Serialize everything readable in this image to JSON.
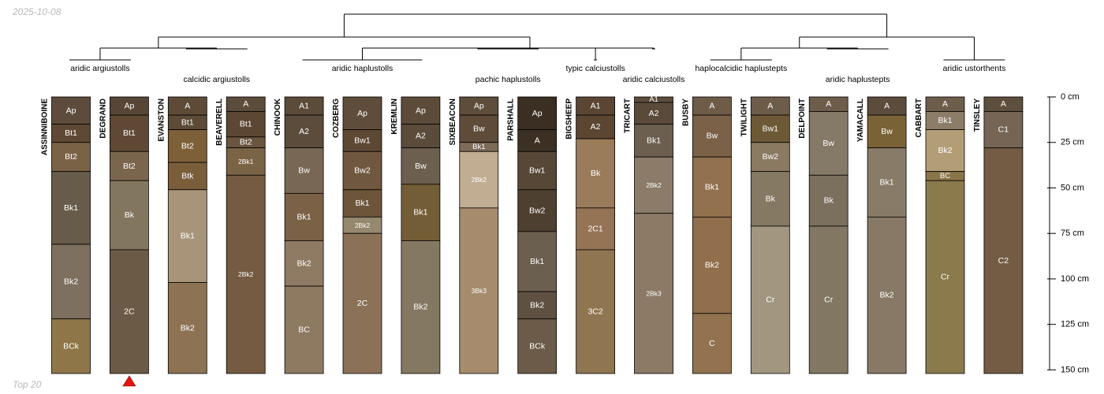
{
  "header": {
    "date": "2025-10-08"
  },
  "footer": {
    "note": "Top 20"
  },
  "chart_data": {
    "type": "soil-profile",
    "depth_axis": {
      "unit": "cm",
      "range": [
        0,
        150
      ],
      "ticks": [
        {
          "value": 0,
          "label": "0 cm"
        },
        {
          "value": 25,
          "label": "25 cm"
        },
        {
          "value": 50,
          "label": "50 cm"
        },
        {
          "value": 75,
          "label": "75 cm"
        },
        {
          "value": 100,
          "label": "100 cm"
        },
        {
          "value": 125,
          "label": "125 cm"
        },
        {
          "value": 150,
          "label": "150 cm"
        }
      ]
    },
    "marked_profile": "DEGRAND",
    "profiles": [
      {
        "name": "ASSINNIBOINE",
        "horizons": [
          {
            "name": "Ap",
            "top": 0,
            "bottom": 15,
            "color": "#5d4c3b"
          },
          {
            "name": "Bt1",
            "top": 15,
            "bottom": 25,
            "color": "#5f4934"
          },
          {
            "name": "Bt2",
            "top": 25,
            "bottom": 41,
            "color": "#7a6246"
          },
          {
            "name": "Bk1",
            "top": 41,
            "bottom": 81,
            "color": "#675b4a"
          },
          {
            "name": "Bk2",
            "top": 81,
            "bottom": 122,
            "color": "#7e705e"
          },
          {
            "name": "BCk",
            "top": 122,
            "bottom": 152,
            "color": "#8e7649"
          }
        ]
      },
      {
        "name": "DEGRAND",
        "horizons": [
          {
            "name": "Ap",
            "top": 0,
            "bottom": 10,
            "color": "#574636"
          },
          {
            "name": "Bt1",
            "top": 10,
            "bottom": 30,
            "color": "#5f4934"
          },
          {
            "name": "Bt2",
            "top": 30,
            "bottom": 46,
            "color": "#7b664d"
          },
          {
            "name": "Bk",
            "top": 46,
            "bottom": 84,
            "color": "#83765f"
          },
          {
            "name": "2C",
            "top": 84,
            "bottom": 152,
            "color": "#6b5b46"
          }
        ]
      },
      {
        "name": "EVANSTON",
        "horizons": [
          {
            "name": "A",
            "top": 0,
            "bottom": 10,
            "color": "#5d4b38"
          },
          {
            "name": "Bt1",
            "top": 10,
            "bottom": 18,
            "color": "#5d4a37"
          },
          {
            "name": "Bt2",
            "top": 18,
            "bottom": 36,
            "color": "#7d6038"
          },
          {
            "name": "Btk",
            "top": 36,
            "bottom": 51,
            "color": "#7a5e3a"
          },
          {
            "name": "Bk1",
            "top": 51,
            "bottom": 102,
            "color": "#a79479"
          },
          {
            "name": "Bk2",
            "top": 102,
            "bottom": 152,
            "color": "#8d7354"
          }
        ]
      },
      {
        "name": "BEAVERELL",
        "horizons": [
          {
            "name": "A",
            "top": 0,
            "bottom": 8,
            "color": "#5c4c3b"
          },
          {
            "name": "Bt1",
            "top": 8,
            "bottom": 22,
            "color": "#5c4734"
          },
          {
            "name": "Bt2",
            "top": 22,
            "bottom": 28,
            "color": "#6a5540"
          },
          {
            "name": "2Bk1",
            "top": 28,
            "bottom": 43,
            "color": "#7b6445"
          },
          {
            "name": "2Bk2",
            "top": 43,
            "bottom": 152,
            "color": "#745b41"
          }
        ]
      },
      {
        "name": "CHINOOK",
        "horizons": [
          {
            "name": "A1",
            "top": 0,
            "bottom": 10,
            "color": "#5b4b39"
          },
          {
            "name": "A2",
            "top": 10,
            "bottom": 28,
            "color": "#5c4c3c"
          },
          {
            "name": "Bw",
            "top": 28,
            "bottom": 53,
            "color": "#776754"
          },
          {
            "name": "Bk1",
            "top": 53,
            "bottom": 79,
            "color": "#7b6246"
          },
          {
            "name": "Bk2",
            "top": 79,
            "bottom": 104,
            "color": "#8f7b63"
          },
          {
            "name": "BC",
            "top": 104,
            "bottom": 152,
            "color": "#8e7a61"
          }
        ]
      },
      {
        "name": "COZBERG",
        "horizons": [
          {
            "name": "Ap",
            "top": 0,
            "bottom": 18,
            "color": "#5f4d3b"
          },
          {
            "name": "Bw1",
            "top": 18,
            "bottom": 30,
            "color": "#5d4834"
          },
          {
            "name": "Bw2",
            "top": 30,
            "bottom": 51,
            "color": "#705840"
          },
          {
            "name": "Bk1",
            "top": 51,
            "bottom": 66,
            "color": "#6c5539"
          },
          {
            "name": "2Bk2",
            "top": 66,
            "bottom": 75,
            "color": "#95886f"
          },
          {
            "name": "2C",
            "top": 75,
            "bottom": 152,
            "color": "#8b7257"
          }
        ]
      },
      {
        "name": "KREMLIN",
        "horizons": [
          {
            "name": "Ap",
            "top": 0,
            "bottom": 15,
            "color": "#5d4b3a"
          },
          {
            "name": "A2",
            "top": 15,
            "bottom": 28,
            "color": "#5b4b3b"
          },
          {
            "name": "Bw",
            "top": 28,
            "bottom": 48,
            "color": "#6d5f4f"
          },
          {
            "name": "Bk1",
            "top": 48,
            "bottom": 79,
            "color": "#735d36"
          },
          {
            "name": "Bk2",
            "top": 79,
            "bottom": 152,
            "color": "#857862"
          }
        ]
      },
      {
        "name": "SIXBEACON",
        "horizons": [
          {
            "name": "Ap",
            "top": 0,
            "bottom": 10,
            "color": "#5e4d3b"
          },
          {
            "name": "Bw",
            "top": 10,
            "bottom": 25,
            "color": "#5e4c39"
          },
          {
            "name": "Bk1",
            "top": 25,
            "bottom": 30,
            "color": "#7d6b57"
          },
          {
            "name": "2Bk2",
            "top": 30,
            "bottom": 61,
            "color": "#c0ad92"
          },
          {
            "name": "3Bk3",
            "top": 61,
            "bottom": 152,
            "color": "#a68b6c"
          }
        ]
      },
      {
        "name": "PARSHALL",
        "horizons": [
          {
            "name": "Ap",
            "top": 0,
            "bottom": 18,
            "color": "#3b2f23"
          },
          {
            "name": "A",
            "top": 18,
            "bottom": 30,
            "color": "#3c3024"
          },
          {
            "name": "Bw1",
            "top": 30,
            "bottom": 51,
            "color": "#564737"
          },
          {
            "name": "Bw2",
            "top": 51,
            "bottom": 74,
            "color": "#4e4030"
          },
          {
            "name": "Bk1",
            "top": 74,
            "bottom": 107,
            "color": "#6b5f50"
          },
          {
            "name": "Bk2",
            "top": 107,
            "bottom": 122,
            "color": "#5f5141"
          },
          {
            "name": "BCk",
            "top": 122,
            "bottom": 152,
            "color": "#6b5b48"
          }
        ]
      },
      {
        "name": "BIGSHEEP",
        "horizons": [
          {
            "name": "A1",
            "top": 0,
            "bottom": 10,
            "color": "#5b4634"
          },
          {
            "name": "A2",
            "top": 10,
            "bottom": 23,
            "color": "#5c4632"
          },
          {
            "name": "Bk",
            "top": 23,
            "bottom": 61,
            "color": "#9a7c5b"
          },
          {
            "name": "2C1",
            "top": 61,
            "bottom": 84,
            "color": "#957455"
          },
          {
            "name": "3C2",
            "top": 84,
            "bottom": 152,
            "color": "#8f7651"
          }
        ]
      },
      {
        "name": "TRICART",
        "horizons": [
          {
            "name": "A1",
            "top": 0,
            "bottom": 3,
            "color": "#5d4c3b"
          },
          {
            "name": "A2",
            "top": 3,
            "bottom": 15,
            "color": "#5a4a3a"
          },
          {
            "name": "Bk1",
            "top": 15,
            "bottom": 33,
            "color": "#6c5f4f"
          },
          {
            "name": "2Bk2",
            "top": 33,
            "bottom": 64,
            "color": "#8b7b68"
          },
          {
            "name": "2Bk3",
            "top": 64,
            "bottom": 152,
            "color": "#8c7a67"
          }
        ]
      },
      {
        "name": "BUSBY",
        "horizons": [
          {
            "name": "A",
            "top": 0,
            "bottom": 10,
            "color": "#6e5c49"
          },
          {
            "name": "Bw",
            "top": 10,
            "bottom": 33,
            "color": "#7a6148"
          },
          {
            "name": "Bk1",
            "top": 33,
            "bottom": 66,
            "color": "#91714e"
          },
          {
            "name": "Bk2",
            "top": 66,
            "bottom": 119,
            "color": "#916f4d"
          },
          {
            "name": "C",
            "top": 119,
            "bottom": 152,
            "color": "#93734f"
          }
        ]
      },
      {
        "name": "TWILIGHT",
        "horizons": [
          {
            "name": "A",
            "top": 0,
            "bottom": 10,
            "color": "#6d5c4a"
          },
          {
            "name": "Bw1",
            "top": 10,
            "bottom": 25,
            "color": "#6e5937"
          },
          {
            "name": "Bw2",
            "top": 25,
            "bottom": 41,
            "color": "#8a7a62"
          },
          {
            "name": "Bk",
            "top": 41,
            "bottom": 71,
            "color": "#857963"
          },
          {
            "name": "Cr",
            "top": 71,
            "bottom": 152,
            "color": "#a29680"
          }
        ]
      },
      {
        "name": "DELPOINT",
        "horizons": [
          {
            "name": "A",
            "top": 0,
            "bottom": 8,
            "color": "#6e5d4b"
          },
          {
            "name": "Bw",
            "top": 8,
            "bottom": 43,
            "color": "#857a68"
          },
          {
            "name": "Bk",
            "top": 43,
            "bottom": 71,
            "color": "#7b6f5d"
          },
          {
            "name": "Cr",
            "top": 71,
            "bottom": 152,
            "color": "#817763"
          }
        ]
      },
      {
        "name": "YAMACALL",
        "horizons": [
          {
            "name": "A",
            "top": 0,
            "bottom": 10,
            "color": "#5c4c3b"
          },
          {
            "name": "Bw",
            "top": 10,
            "bottom": 28,
            "color": "#7a6237"
          },
          {
            "name": "Bk1",
            "top": 28,
            "bottom": 66,
            "color": "#887b68"
          },
          {
            "name": "Bk2",
            "top": 66,
            "bottom": 152,
            "color": "#877966"
          }
        ]
      },
      {
        "name": "CABBART",
        "horizons": [
          {
            "name": "A",
            "top": 0,
            "bottom": 8,
            "color": "#6d5e4b"
          },
          {
            "name": "Bk1",
            "top": 8,
            "bottom": 18,
            "color": "#8c7d68"
          },
          {
            "name": "Bk2",
            "top": 18,
            "bottom": 41,
            "color": "#b39d77"
          },
          {
            "name": "BC",
            "top": 41,
            "bottom": 46,
            "color": "#8c7449"
          },
          {
            "name": "Cr",
            "top": 46,
            "bottom": 152,
            "color": "#8a7a4c"
          }
        ]
      },
      {
        "name": "TINSLEY",
        "horizons": [
          {
            "name": "A",
            "top": 0,
            "bottom": 8,
            "color": "#5e4e3d"
          },
          {
            "name": "C1",
            "top": 8,
            "bottom": 28,
            "color": "#766554"
          },
          {
            "name": "C2",
            "top": 28,
            "bottom": 152,
            "color": "#735c43"
          }
        ]
      }
    ],
    "groups": [
      {
        "label": "aridic argiustolls",
        "profiles": [
          "ASSINNIBOINE",
          "DEGRAND"
        ]
      },
      {
        "label": "calcidic argiustolls",
        "profiles": [
          "EVANSTON",
          "BEAVERELL"
        ]
      },
      {
        "label": "aridic haplustolls",
        "profiles": [
          "CHINOOK",
          "COZBERG",
          "KREMLIN"
        ]
      },
      {
        "label": "pachic haplustolls",
        "profiles": [
          "SIXBEACON",
          "PARSHALL"
        ]
      },
      {
        "label": "typic calciustolls",
        "profiles": [
          "BIGSHEEP"
        ]
      },
      {
        "label": "aridic calciustolls",
        "profiles": [
          "TRICART"
        ]
      },
      {
        "label": "haplocalcidic haplustepts",
        "profiles": [
          "BUSBY",
          "TWILIGHT"
        ]
      },
      {
        "label": "aridic haplustepts",
        "profiles": [
          "DELPOINT",
          "YAMACALL"
        ]
      },
      {
        "label": "aridic ustorthents",
        "profiles": [
          "CABBART",
          "TINSLEY"
        ]
      }
    ],
    "dendrogram": {
      "children": [
        {
          "children": [
            {
              "children": [
                {
                  "group": "aridic argiustolls"
                },
                {
                  "group": "calcidic argiustolls"
                }
              ]
            },
            {
              "children": [
                {
                  "children": [
                    {
                      "group": "aridic haplustolls"
                    },
                    {
                      "group": "pachic haplustolls"
                    }
                  ]
                },
                {
                  "children": [
                    {
                      "group": "typic calciustolls"
                    },
                    {
                      "group": "aridic calciustolls"
                    }
                  ]
                }
              ]
            }
          ]
        },
        {
          "children": [
            {
              "children": [
                {
                  "group": "haplocalcidic haplustepts"
                },
                {
                  "group": "aridic haplustepts"
                }
              ]
            },
            {
              "group": "aridic ustorthents"
            }
          ]
        }
      ]
    }
  }
}
